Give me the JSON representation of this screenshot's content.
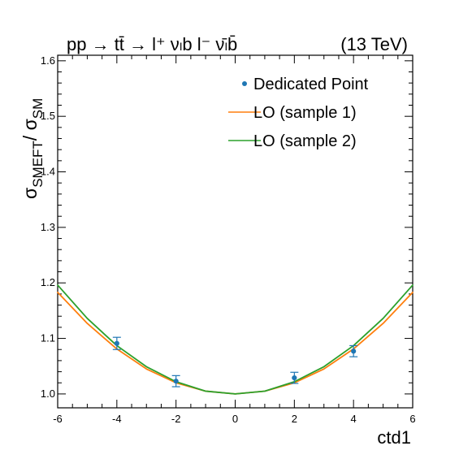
{
  "chart_data": {
    "type": "line",
    "title_left": "pp → tt̄ → l⁺ νₗb  l⁻ ν̄ₗb̄",
    "title_right": "(13 TeV)",
    "xlabel": "ctd1",
    "ylabel": "σSMEFT/ σSM",
    "xlim": [
      -6,
      6
    ],
    "ylim": [
      0.975,
      1.61
    ],
    "xticks": [
      -6,
      -4,
      -2,
      0,
      2,
      4,
      6
    ],
    "yticks": [
      1.0,
      1.1,
      1.2,
      1.3,
      1.4,
      1.5,
      1.6
    ],
    "ytick_labels": [
      "1.0",
      "1.1",
      "1.2",
      "1.3",
      "1.4",
      "1.5",
      "1.6"
    ],
    "legend": {
      "position": "top-right",
      "entries": [
        {
          "label": "Dedicated Point",
          "kind": "marker",
          "color": "#1f77b4"
        },
        {
          "label": "LO (sample 1)",
          "kind": "line",
          "color": "#ff7f0e"
        },
        {
          "label": "LO (sample 2)",
          "kind": "line",
          "color": "#2ca02c"
        }
      ]
    },
    "series": [
      {
        "name": "LO (sample 1)",
        "kind": "line",
        "color": "#ff7f0e",
        "x": [
          -6,
          -5,
          -4,
          -3,
          -2,
          -1,
          0,
          1,
          2,
          3,
          4,
          5,
          6
        ],
        "y": [
          1.183,
          1.127,
          1.081,
          1.045,
          1.02,
          1.005,
          1.0,
          1.005,
          1.02,
          1.045,
          1.081,
          1.127,
          1.183
        ]
      },
      {
        "name": "LO (sample 2)",
        "kind": "line",
        "color": "#2ca02c",
        "x": [
          -6,
          -5,
          -4,
          -3,
          -2,
          -1,
          0,
          1,
          2,
          3,
          4,
          5,
          6
        ],
        "y": [
          1.196,
          1.136,
          1.087,
          1.049,
          1.022,
          1.005,
          1.0,
          1.005,
          1.022,
          1.049,
          1.087,
          1.136,
          1.196
        ]
      },
      {
        "name": "Dedicated Point",
        "kind": "points",
        "color": "#1f77b4",
        "x": [
          -4,
          -2,
          2,
          4
        ],
        "y": [
          1.091,
          1.023,
          1.029,
          1.077
        ],
        "yerr": [
          0.011,
          0.01,
          0.01,
          0.01
        ]
      }
    ]
  }
}
